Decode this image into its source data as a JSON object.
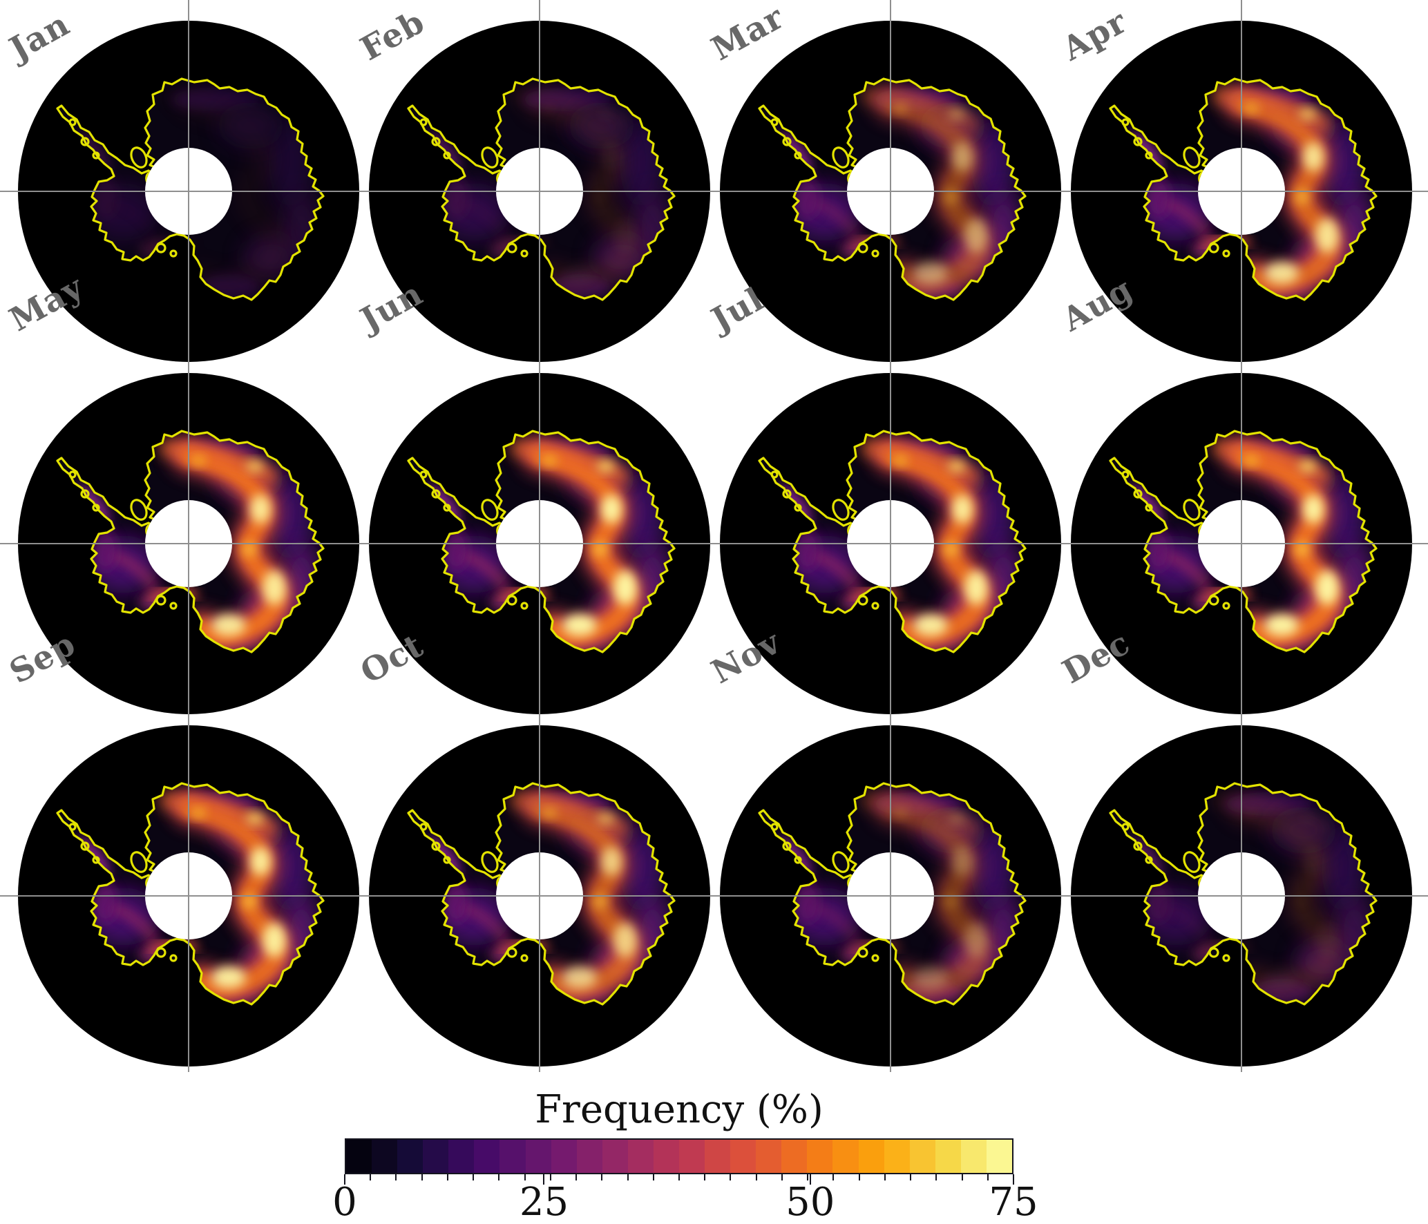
{
  "figure": {
    "background": "#ffffff",
    "description": "Monthly south-polar stereographic maps of Antarctica showing occurrence frequency, 4 columns by 3 rows, with a shared discrete colorbar below"
  },
  "months": [
    {
      "label": "Jan",
      "haze": 0.38,
      "band": 0.04,
      "bright": 0.0
    },
    {
      "label": "Feb",
      "haze": 0.6,
      "band": 0.12,
      "bright": 0.04
    },
    {
      "label": "Mar",
      "haze": 0.95,
      "band": 0.6,
      "bright": 0.5
    },
    {
      "label": "Apr",
      "haze": 1.0,
      "band": 0.92,
      "bright": 0.88
    },
    {
      "label": "May",
      "haze": 1.0,
      "band": 1.0,
      "bright": 0.92
    },
    {
      "label": "Jun",
      "haze": 1.0,
      "band": 1.0,
      "bright": 1.0
    },
    {
      "label": "Jul",
      "haze": 1.0,
      "band": 0.98,
      "bright": 0.95
    },
    {
      "label": "Aug",
      "haze": 1.0,
      "band": 1.0,
      "bright": 1.0
    },
    {
      "label": "Sep",
      "haze": 1.0,
      "band": 0.97,
      "bright": 0.95
    },
    {
      "label": "Oct",
      "haze": 1.0,
      "band": 0.85,
      "bright": 0.75
    },
    {
      "label": "Nov",
      "haze": 0.95,
      "band": 0.5,
      "bright": 0.3
    },
    {
      "label": "Dec",
      "haze": 0.65,
      "band": 0.16,
      "bright": 0.04
    }
  ],
  "map": {
    "coast_color": "#e3e300",
    "grid_color": "#8f8f8f",
    "ocean_color": "#000000",
    "land_color": "#0a0513",
    "pole_hole_color": "#ffffff",
    "label_color": "#686868"
  },
  "colorbar": {
    "title": "Frequency (%)",
    "ticks": [
      {
        "label": "0",
        "pos": 0.0
      },
      {
        "label": "25",
        "pos": 0.298
      },
      {
        "label": "50",
        "pos": 0.696
      },
      {
        "label": "75",
        "pos": 1.0
      }
    ],
    "segments": [
      "#050310",
      "#0d0721",
      "#150b37",
      "#250b49",
      "#360a5b",
      "#470b68",
      "#56116b",
      "#65166d",
      "#751a6e",
      "#85216a",
      "#942766",
      "#a42d60",
      "#b33358",
      "#c03a51",
      "#cf4645",
      "#dc503b",
      "#e45d30",
      "#ed6c23",
      "#f47d17",
      "#f88f12",
      "#fa9f0d",
      "#fbb118",
      "#f8c431",
      "#f6d848",
      "#f8e86d",
      "#fbf792"
    ],
    "border_color": "#15151f"
  },
  "chart_data": {
    "type": "heatmap",
    "subtype": "faceted polar-stereographic maps of Antarctica, one facet per month",
    "facets": [
      "Jan",
      "Feb",
      "Mar",
      "Apr",
      "May",
      "Jun",
      "Jul",
      "Aug",
      "Sep",
      "Oct",
      "Nov",
      "Dec"
    ],
    "variable": "Frequency (%)",
    "value_range": [
      0,
      75
    ],
    "colorbar_ticks": [
      0,
      25,
      50,
      75
    ],
    "colormap": "inferno (discrete, ~26 levels, black through purple and orange to pale yellow)",
    "legend_position": "bottom, horizontal colorbar with title above",
    "grid": "gray crosshair gridlines through each map center",
    "map_features": "yellow Antarctic coastline outline, white circular pole hole at center of each disk",
    "spatial_pattern": "high frequencies form an S-shaped band over the East Antarctic plateau and along coastal escarpments; West Antarctica and the Peninsula stay low (purple); brightest cells near Ross Ice Shelf margin and East Antarctic coast",
    "monthly_relative_intensity": {
      "Jan": 0.04,
      "Feb": 0.12,
      "Mar": 0.55,
      "Apr": 0.88,
      "May": 0.95,
      "Jun": 1.0,
      "Jul": 0.97,
      "Aug": 1.0,
      "Sep": 0.95,
      "Oct": 0.78,
      "Nov": 0.42,
      "Dec": 0.12
    }
  }
}
